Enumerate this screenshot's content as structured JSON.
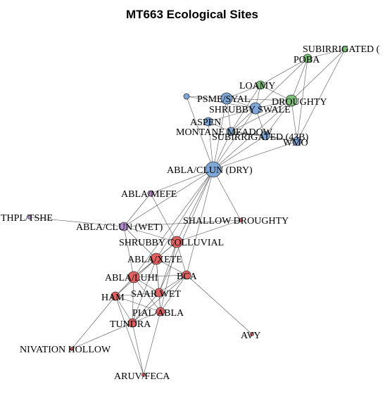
{
  "figure": {
    "title": "MT663 Ecological Sites"
  },
  "groups": {
    "blue": "#7EA6D6",
    "green": "#7DC07A",
    "purple": "#B08CC8",
    "red": "#E06060"
  },
  "nodes": [
    {
      "id": "subirrigated_top",
      "label": "SUBIRRIGATED (",
      "group": "green",
      "weight": 1
    },
    {
      "id": "poba",
      "label": "POBA",
      "group": "green",
      "weight": 2
    },
    {
      "id": "loamy",
      "label": "LOAMY",
      "group": "green",
      "weight": 2
    },
    {
      "id": "psme_syal",
      "label": "PSME/SYAL",
      "group": "blue",
      "weight": 3
    },
    {
      "id": "droughty",
      "label": "DROUGHTY",
      "group": "green",
      "weight": 3
    },
    {
      "id": "shrubby_swale",
      "label": "SHRUBBY SWALE",
      "group": "blue",
      "weight": 3
    },
    {
      "id": "aspen",
      "label": "ASPEN",
      "group": "blue",
      "weight": 2
    },
    {
      "id": "montane_meadow",
      "label": "MONTANE MEADOW",
      "group": "blue",
      "weight": 2
    },
    {
      "id": "subirrigated_43b",
      "label": "SUBIRRIGATED (43B)",
      "group": "blue",
      "weight": 2
    },
    {
      "id": "wmo",
      "label": "WMO",
      "group": "blue",
      "weight": 2
    },
    {
      "id": "unlabeled_blue",
      "label": "",
      "group": "blue",
      "weight": 1
    },
    {
      "id": "abla_clun_dry",
      "label": "ABLA/CLUN (DRY)",
      "group": "blue",
      "weight": 4
    },
    {
      "id": "abla_mefe",
      "label": "ABLA/MEFE",
      "group": "purple",
      "weight": 1
    },
    {
      "id": "thpl_tshe",
      "label": "THPL/TSHE",
      "group": "purple",
      "weight": 0
    },
    {
      "id": "abla_clun_wet",
      "label": "ABLA/CLUN (WET)",
      "group": "purple",
      "weight": 2
    },
    {
      "id": "shallow_droughty",
      "label": "SHALLOW DROUGHTY",
      "group": "red",
      "weight": 0
    },
    {
      "id": "shrubby_colluvial",
      "label": "SHRUBBY COLLUVIAL",
      "group": "red",
      "weight": 3
    },
    {
      "id": "abla_xete",
      "label": "ABLA/XETE",
      "group": "red",
      "weight": 3
    },
    {
      "id": "abla_luhi",
      "label": "ABLA/LUHI",
      "group": "red",
      "weight": 3
    },
    {
      "id": "bca",
      "label": "BCA",
      "group": "red",
      "weight": 2
    },
    {
      "id": "saar_wet",
      "label": "SAAR WET",
      "group": "red",
      "weight": 2
    },
    {
      "id": "ham",
      "label": "HAM",
      "group": "red",
      "weight": 2
    },
    {
      "id": "pial_abla",
      "label": "PIAL/ABLA",
      "group": "red",
      "weight": 2
    },
    {
      "id": "tundra",
      "label": "TUNDRA",
      "group": "red",
      "weight": 2
    },
    {
      "id": "avy",
      "label": "AVY",
      "group": "red",
      "weight": 0
    },
    {
      "id": "nivation_hollow",
      "label": "NIVATION HOLLOW",
      "group": "red",
      "weight": 0
    },
    {
      "id": "aruv_feca",
      "label": "ARUV/FECA",
      "group": "red",
      "weight": 0
    }
  ],
  "edges": [
    [
      "subirrigated_top",
      "poba"
    ],
    [
      "subirrigated_top",
      "droughty"
    ],
    [
      "subirrigated_top",
      "wmo"
    ],
    [
      "poba",
      "loamy"
    ],
    [
      "poba",
      "droughty"
    ],
    [
      "poba",
      "shrubby_swale"
    ],
    [
      "poba",
      "wmo"
    ],
    [
      "loamy",
      "psme_syal"
    ],
    [
      "loamy",
      "droughty"
    ],
    [
      "loamy",
      "shrubby_swale"
    ],
    [
      "loamy",
      "montane_meadow"
    ],
    [
      "psme_syal",
      "shrubby_swale"
    ],
    [
      "psme_syal",
      "droughty"
    ],
    [
      "psme_syal",
      "montane_meadow"
    ],
    [
      "psme_syal",
      "abla_clun_dry"
    ],
    [
      "psme_syal",
      "unlabeled_blue"
    ],
    [
      "droughty",
      "shrubby_swale"
    ],
    [
      "droughty",
      "subirrigated_43b"
    ],
    [
      "droughty",
      "wmo"
    ],
    [
      "droughty",
      "abla_clun_dry"
    ],
    [
      "droughty",
      "montane_meadow"
    ],
    [
      "shrubby_swale",
      "montane_meadow"
    ],
    [
      "shrubby_swale",
      "subirrigated_43b"
    ],
    [
      "shrubby_swale",
      "abla_clun_dry"
    ],
    [
      "shrubby_swale",
      "aspen"
    ],
    [
      "shrubby_swale",
      "unlabeled_blue"
    ],
    [
      "aspen",
      "montane_meadow"
    ],
    [
      "aspen",
      "abla_clun_dry"
    ],
    [
      "montane_meadow",
      "subirrigated_43b"
    ],
    [
      "montane_meadow",
      "wmo"
    ],
    [
      "montane_meadow",
      "abla_clun_dry"
    ],
    [
      "subirrigated_43b",
      "wmo"
    ],
    [
      "subirrigated_43b",
      "abla_clun_dry"
    ],
    [
      "wmo",
      "abla_clun_dry"
    ],
    [
      "unlabeled_blue",
      "abla_clun_dry"
    ],
    [
      "abla_clun_dry",
      "abla_mefe"
    ],
    [
      "abla_clun_dry",
      "abla_clun_wet"
    ],
    [
      "abla_clun_dry",
      "shallow_droughty"
    ],
    [
      "abla_clun_dry",
      "shrubby_colluvial"
    ],
    [
      "abla_clun_dry",
      "abla_xete"
    ],
    [
      "abla_clun_dry",
      "bca"
    ],
    [
      "abla_clun_dry",
      "abla_luhi"
    ],
    [
      "abla_clun_dry",
      "saar_wet"
    ],
    [
      "abla_mefe",
      "abla_clun_wet"
    ],
    [
      "abla_mefe",
      "shrubby_colluvial"
    ],
    [
      "thpl_tshe",
      "abla_clun_wet"
    ],
    [
      "abla_clun_wet",
      "shallow_droughty"
    ],
    [
      "abla_clun_wet",
      "shrubby_colluvial"
    ],
    [
      "abla_clun_wet",
      "abla_xete"
    ],
    [
      "abla_clun_wet",
      "abla_luhi"
    ],
    [
      "shallow_droughty",
      "shrubby_colluvial"
    ],
    [
      "shrubby_colluvial",
      "abla_xete"
    ],
    [
      "shrubby_colluvial",
      "abla_luhi"
    ],
    [
      "shrubby_colluvial",
      "bca"
    ],
    [
      "shrubby_colluvial",
      "saar_wet"
    ],
    [
      "shrubby_colluvial",
      "pial_abla"
    ],
    [
      "abla_xete",
      "abla_luhi"
    ],
    [
      "abla_xete",
      "bca"
    ],
    [
      "abla_xete",
      "saar_wet"
    ],
    [
      "abla_xete",
      "ham"
    ],
    [
      "abla_xete",
      "pial_abla"
    ],
    [
      "abla_xete",
      "tundra"
    ],
    [
      "abla_luhi",
      "saar_wet"
    ],
    [
      "abla_luhi",
      "ham"
    ],
    [
      "abla_luhi",
      "pial_abla"
    ],
    [
      "abla_luhi",
      "tundra"
    ],
    [
      "abla_luhi",
      "bca"
    ],
    [
      "bca",
      "saar_wet"
    ],
    [
      "bca",
      "pial_abla"
    ],
    [
      "bca",
      "avy"
    ],
    [
      "bca",
      "tundra"
    ],
    [
      "saar_wet",
      "ham"
    ],
    [
      "saar_wet",
      "pial_abla"
    ],
    [
      "saar_wet",
      "tundra"
    ],
    [
      "ham",
      "pial_abla"
    ],
    [
      "ham",
      "tundra"
    ],
    [
      "ham",
      "nivation_hollow"
    ],
    [
      "ham",
      "aruv_feca"
    ],
    [
      "pial_abla",
      "tundra"
    ],
    [
      "pial_abla",
      "aruv_feca"
    ],
    [
      "tundra",
      "nivation_hollow"
    ],
    [
      "tundra",
      "aruv_feca"
    ]
  ]
}
